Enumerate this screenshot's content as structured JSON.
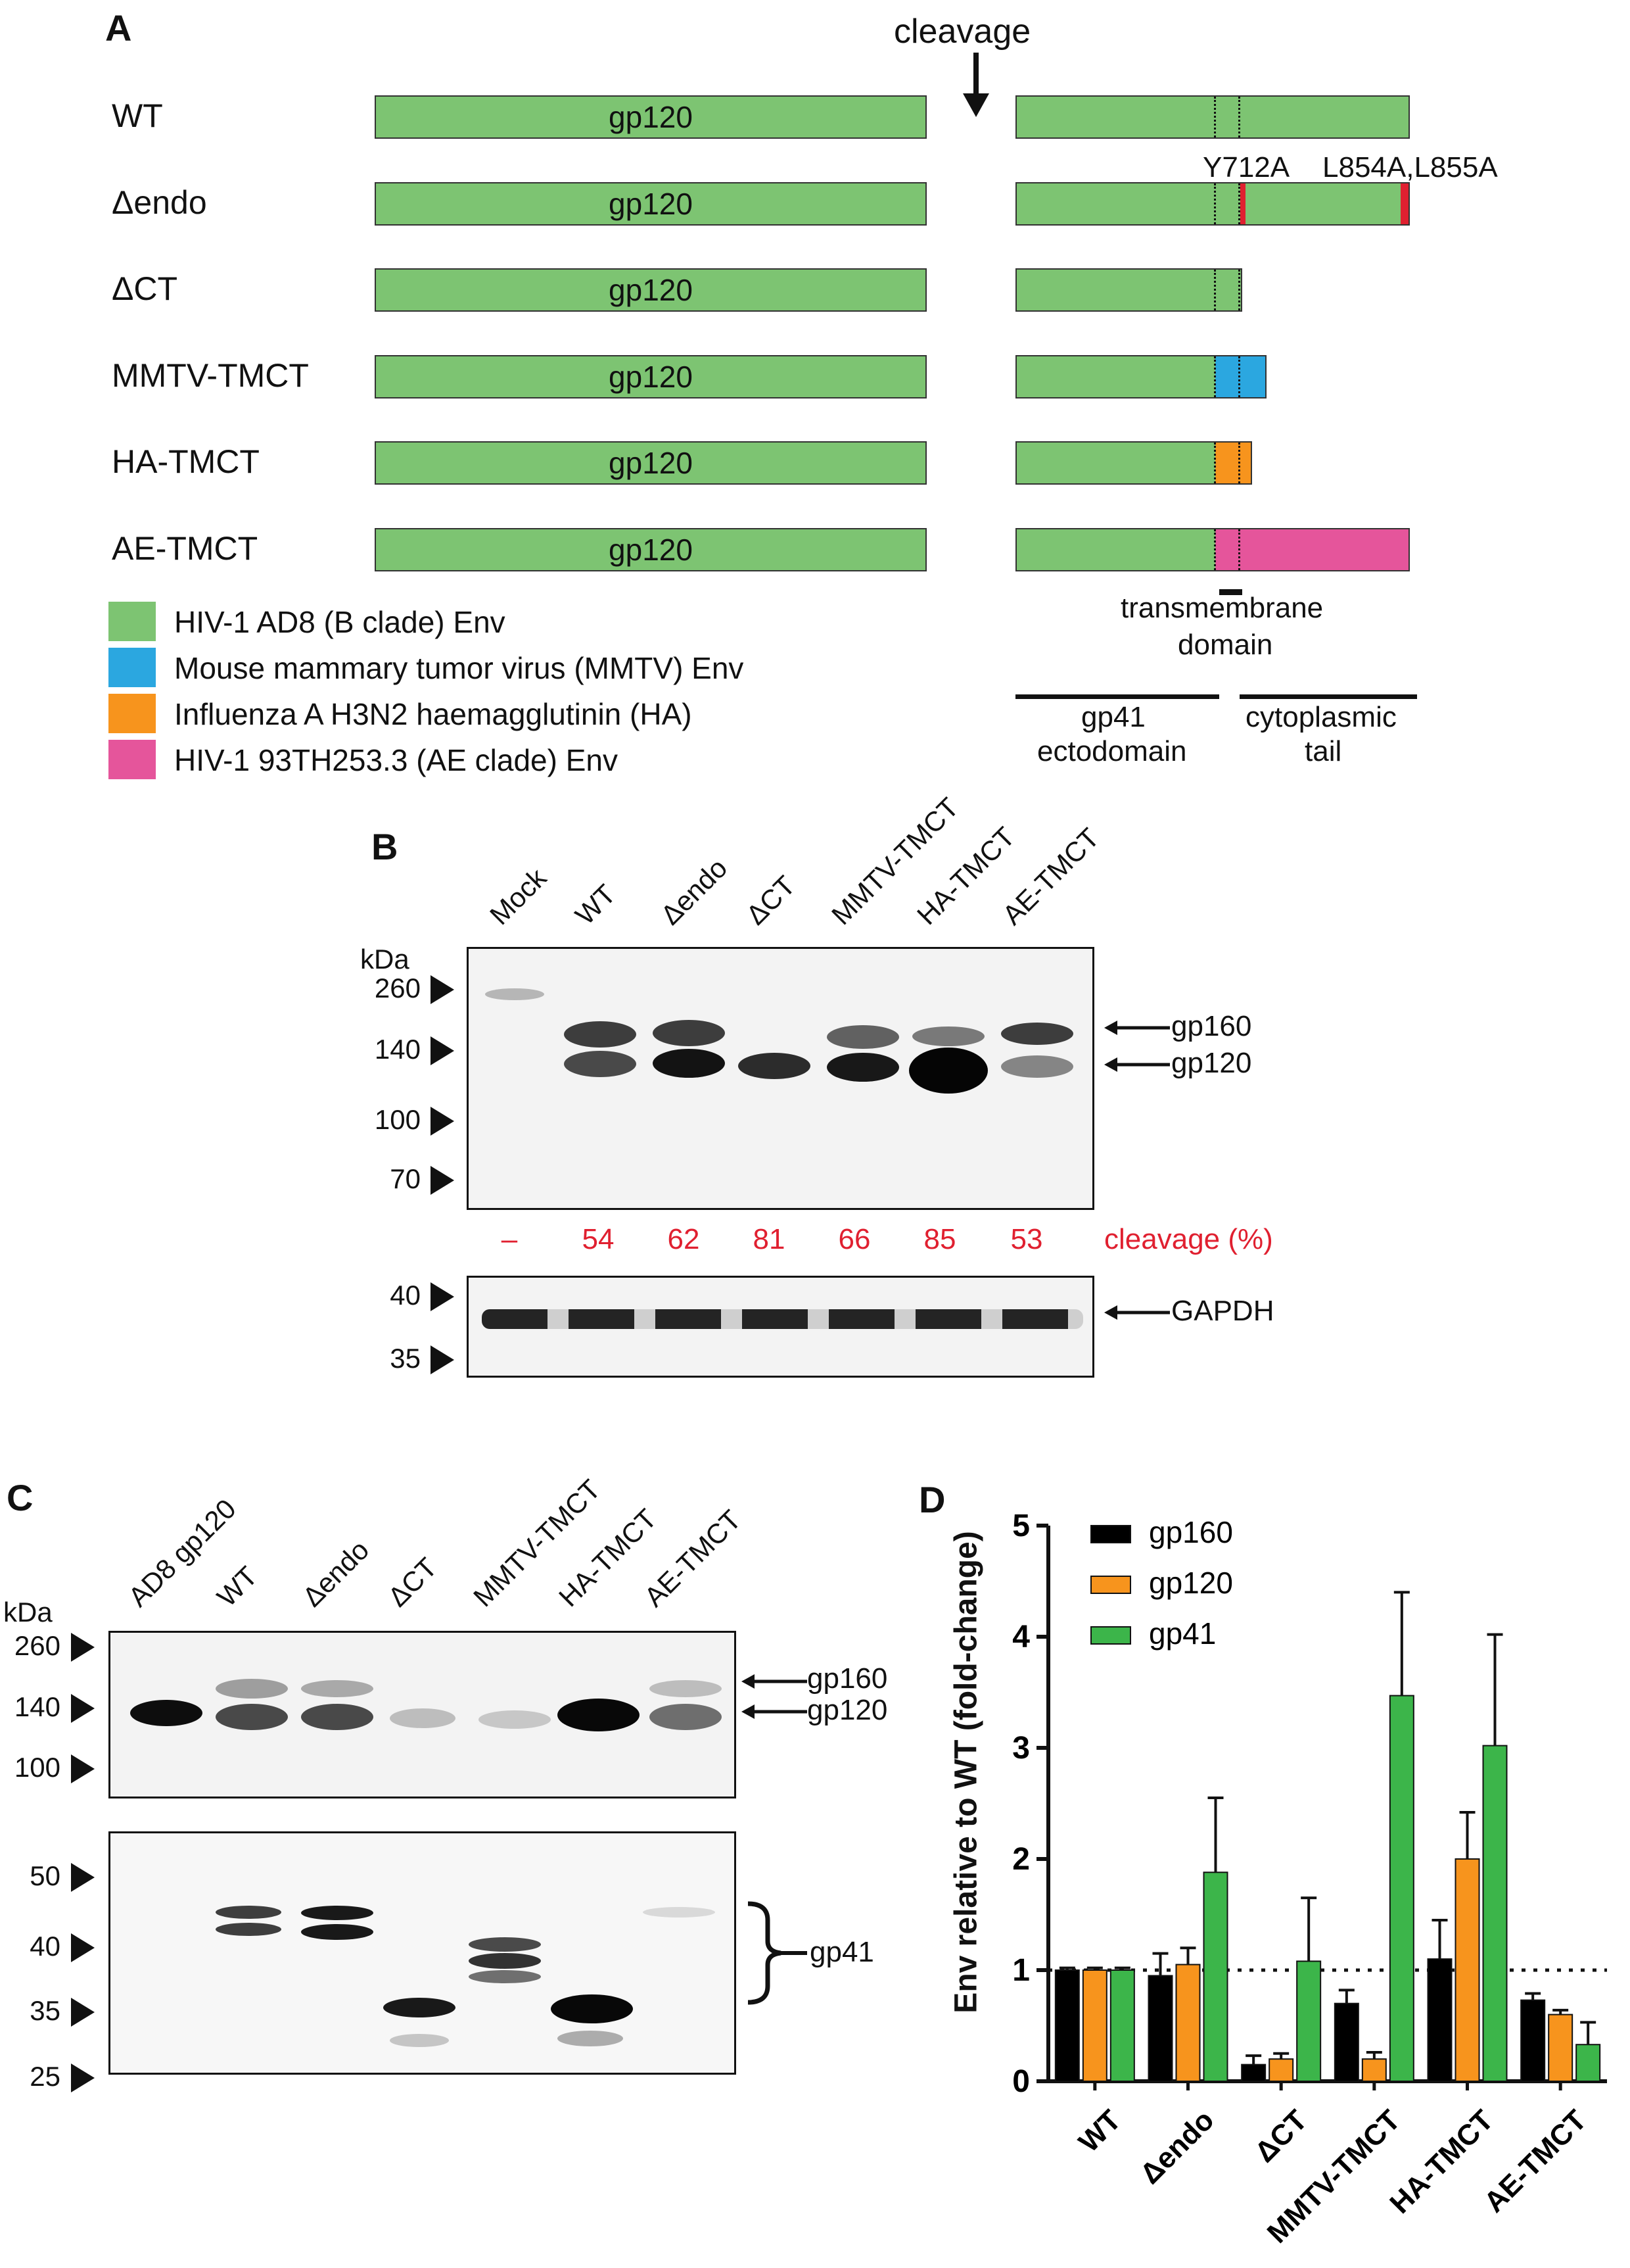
{
  "panelA": {
    "letter": "A",
    "cleavage_label": "cleavage",
    "constructs": [
      {
        "name": "WT",
        "gp120": "gp120"
      },
      {
        "name": "Δendo",
        "gp120": "gp120"
      },
      {
        "name": "ΔCT",
        "gp120": "gp120"
      },
      {
        "name": "MMTV-TMCT",
        "gp120": "gp120"
      },
      {
        "name": "HA-TMCT",
        "gp120": "gp120"
      },
      {
        "name": "AE-TMCT",
        "gp120": "gp120"
      }
    ],
    "mutation_labels": {
      "y712a": "Y712A",
      "l854a": "L854A,L855A"
    },
    "legend": [
      {
        "color": "#7dc472",
        "text": "HIV-1 AD8 (B clade) Env"
      },
      {
        "color": "#2ba7e0",
        "text": "Mouse mammary tumor virus (MMTV) Env"
      },
      {
        "color": "#f7941d",
        "text": "Influenza A H3N2 haemagglutinin (HA)"
      },
      {
        "color": "#e5559b",
        "text": "HIV-1 93TH253.3 (AE clade) Env"
      }
    ],
    "tm_label": {
      "line1": "transmembrane",
      "line2": "domain"
    },
    "gp41_label": {
      "line1": "gp41",
      "line2": "ectodomain"
    },
    "ct_label": {
      "line1": "cytoplasmic",
      "line2": "tail"
    }
  },
  "panelB": {
    "letter": "B",
    "lanes": [
      "Mock",
      "WT",
      "Δendo",
      "ΔCT",
      "MMTV-TMCT",
      "HA-TMCT",
      "AE-TMCT"
    ],
    "kda_title": "kDa",
    "markers_top": [
      "260",
      "140",
      "100",
      "70"
    ],
    "markers_bottom": [
      "40",
      "35"
    ],
    "band_labels": {
      "gp160": "gp160",
      "gp120": "gp120",
      "gapdh": "GAPDH"
    },
    "cleavage_values": [
      "–",
      "54",
      "62",
      "81",
      "66",
      "85",
      "53"
    ],
    "cleavage_label": "cleavage (%)"
  },
  "panelC": {
    "letter": "C",
    "lanes": [
      "AD8 gp120",
      "WT",
      "Δendo",
      "ΔCT",
      "MMTV-TMCT",
      "HA-TMCT",
      "AE-TMCT"
    ],
    "kda_title": "kDa",
    "markers_top": [
      "260",
      "140",
      "100"
    ],
    "markers_bottom": [
      "50",
      "40",
      "35",
      "25"
    ],
    "band_labels": {
      "gp160": "gp160",
      "gp120": "gp120",
      "gp41": "gp41"
    }
  },
  "chart_data": {
    "type": "bar",
    "panel_letter": "D",
    "categories": [
      "WT",
      "Δendo",
      "ΔCT",
      "MMTV-TMCT",
      "HA-TMCT",
      "AE-TMCT"
    ],
    "series": [
      {
        "name": "gp160",
        "color": "#000000",
        "values": [
          1.0,
          0.95,
          0.15,
          0.7,
          1.1,
          0.73
        ],
        "errors": [
          0.02,
          0.2,
          0.08,
          0.12,
          0.35,
          0.06
        ]
      },
      {
        "name": "gp120",
        "color": "#f7941d",
        "values": [
          1.0,
          1.05,
          0.2,
          0.2,
          2.0,
          0.6
        ],
        "errors": [
          0.02,
          0.15,
          0.05,
          0.06,
          0.42,
          0.04
        ]
      },
      {
        "name": "gp41",
        "color": "#3cb54a",
        "values": [
          1.0,
          1.88,
          1.08,
          3.47,
          3.02,
          0.33
        ],
        "errors": [
          0.02,
          0.67,
          0.57,
          0.93,
          1.0,
          0.2
        ]
      }
    ],
    "ylabel": "Env relative to WT (fold-change)",
    "xlabel": "",
    "ylim": [
      0,
      5
    ],
    "yticks": [
      "0",
      "1",
      "2",
      "3",
      "4",
      "5"
    ],
    "reference_line": 1,
    "legend_position": "top-left",
    "grid": false
  }
}
